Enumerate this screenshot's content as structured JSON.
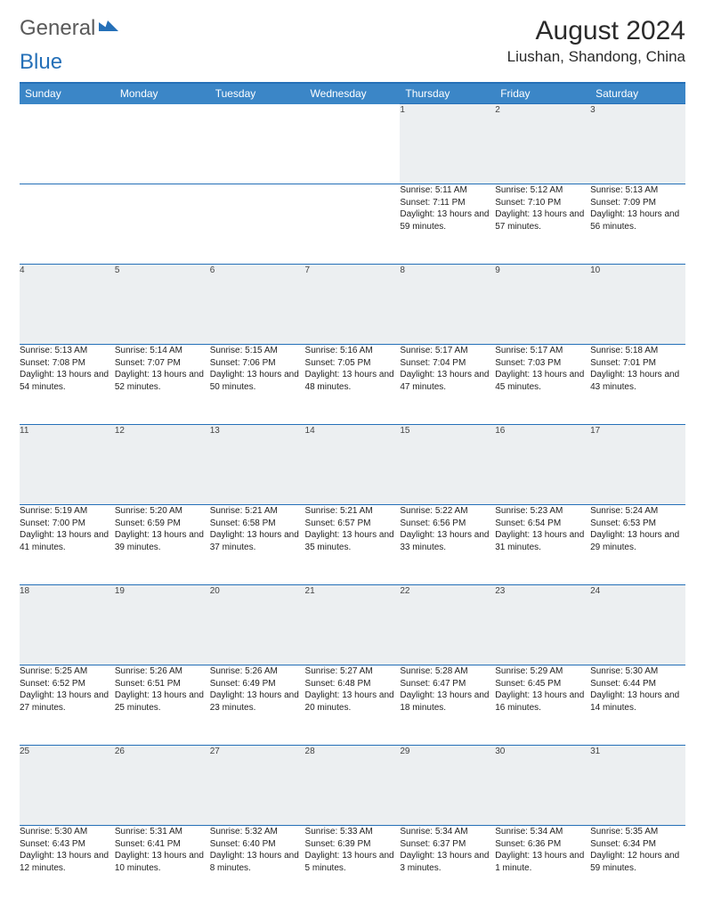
{
  "logo": {
    "text_a": "General",
    "text_b": "Blue"
  },
  "title": "August 2024",
  "location": "Liushan, Shandong, China",
  "colors": {
    "header_bg": "#3b86c7",
    "header_border": "#2570b8",
    "daynum_bg": "#eceff1",
    "text": "#222222",
    "logo_gray": "#5a5a5a",
    "logo_blue": "#2570b8"
  },
  "day_headers": [
    "Sunday",
    "Monday",
    "Tuesday",
    "Wednesday",
    "Thursday",
    "Friday",
    "Saturday"
  ],
  "weeks": [
    [
      null,
      null,
      null,
      null,
      {
        "n": "1",
        "sr": "5:11 AM",
        "ss": "7:11 PM",
        "dl": "13 hours and 59 minutes."
      },
      {
        "n": "2",
        "sr": "5:12 AM",
        "ss": "7:10 PM",
        "dl": "13 hours and 57 minutes."
      },
      {
        "n": "3",
        "sr": "5:13 AM",
        "ss": "7:09 PM",
        "dl": "13 hours and 56 minutes."
      }
    ],
    [
      {
        "n": "4",
        "sr": "5:13 AM",
        "ss": "7:08 PM",
        "dl": "13 hours and 54 minutes."
      },
      {
        "n": "5",
        "sr": "5:14 AM",
        "ss": "7:07 PM",
        "dl": "13 hours and 52 minutes."
      },
      {
        "n": "6",
        "sr": "5:15 AM",
        "ss": "7:06 PM",
        "dl": "13 hours and 50 minutes."
      },
      {
        "n": "7",
        "sr": "5:16 AM",
        "ss": "7:05 PM",
        "dl": "13 hours and 48 minutes."
      },
      {
        "n": "8",
        "sr": "5:17 AM",
        "ss": "7:04 PM",
        "dl": "13 hours and 47 minutes."
      },
      {
        "n": "9",
        "sr": "5:17 AM",
        "ss": "7:03 PM",
        "dl": "13 hours and 45 minutes."
      },
      {
        "n": "10",
        "sr": "5:18 AM",
        "ss": "7:01 PM",
        "dl": "13 hours and 43 minutes."
      }
    ],
    [
      {
        "n": "11",
        "sr": "5:19 AM",
        "ss": "7:00 PM",
        "dl": "13 hours and 41 minutes."
      },
      {
        "n": "12",
        "sr": "5:20 AM",
        "ss": "6:59 PM",
        "dl": "13 hours and 39 minutes."
      },
      {
        "n": "13",
        "sr": "5:21 AM",
        "ss": "6:58 PM",
        "dl": "13 hours and 37 minutes."
      },
      {
        "n": "14",
        "sr": "5:21 AM",
        "ss": "6:57 PM",
        "dl": "13 hours and 35 minutes."
      },
      {
        "n": "15",
        "sr": "5:22 AM",
        "ss": "6:56 PM",
        "dl": "13 hours and 33 minutes."
      },
      {
        "n": "16",
        "sr": "5:23 AM",
        "ss": "6:54 PM",
        "dl": "13 hours and 31 minutes."
      },
      {
        "n": "17",
        "sr": "5:24 AM",
        "ss": "6:53 PM",
        "dl": "13 hours and 29 minutes."
      }
    ],
    [
      {
        "n": "18",
        "sr": "5:25 AM",
        "ss": "6:52 PM",
        "dl": "13 hours and 27 minutes."
      },
      {
        "n": "19",
        "sr": "5:26 AM",
        "ss": "6:51 PM",
        "dl": "13 hours and 25 minutes."
      },
      {
        "n": "20",
        "sr": "5:26 AM",
        "ss": "6:49 PM",
        "dl": "13 hours and 23 minutes."
      },
      {
        "n": "21",
        "sr": "5:27 AM",
        "ss": "6:48 PM",
        "dl": "13 hours and 20 minutes."
      },
      {
        "n": "22",
        "sr": "5:28 AM",
        "ss": "6:47 PM",
        "dl": "13 hours and 18 minutes."
      },
      {
        "n": "23",
        "sr": "5:29 AM",
        "ss": "6:45 PM",
        "dl": "13 hours and 16 minutes."
      },
      {
        "n": "24",
        "sr": "5:30 AM",
        "ss": "6:44 PM",
        "dl": "13 hours and 14 minutes."
      }
    ],
    [
      {
        "n": "25",
        "sr": "5:30 AM",
        "ss": "6:43 PM",
        "dl": "13 hours and 12 minutes."
      },
      {
        "n": "26",
        "sr": "5:31 AM",
        "ss": "6:41 PM",
        "dl": "13 hours and 10 minutes."
      },
      {
        "n": "27",
        "sr": "5:32 AM",
        "ss": "6:40 PM",
        "dl": "13 hours and 8 minutes."
      },
      {
        "n": "28",
        "sr": "5:33 AM",
        "ss": "6:39 PM",
        "dl": "13 hours and 5 minutes."
      },
      {
        "n": "29",
        "sr": "5:34 AM",
        "ss": "6:37 PM",
        "dl": "13 hours and 3 minutes."
      },
      {
        "n": "30",
        "sr": "5:34 AM",
        "ss": "6:36 PM",
        "dl": "13 hours and 1 minute."
      },
      {
        "n": "31",
        "sr": "5:35 AM",
        "ss": "6:34 PM",
        "dl": "12 hours and 59 minutes."
      }
    ]
  ],
  "labels": {
    "sunrise": "Sunrise:",
    "sunset": "Sunset:",
    "daylight": "Daylight:"
  }
}
